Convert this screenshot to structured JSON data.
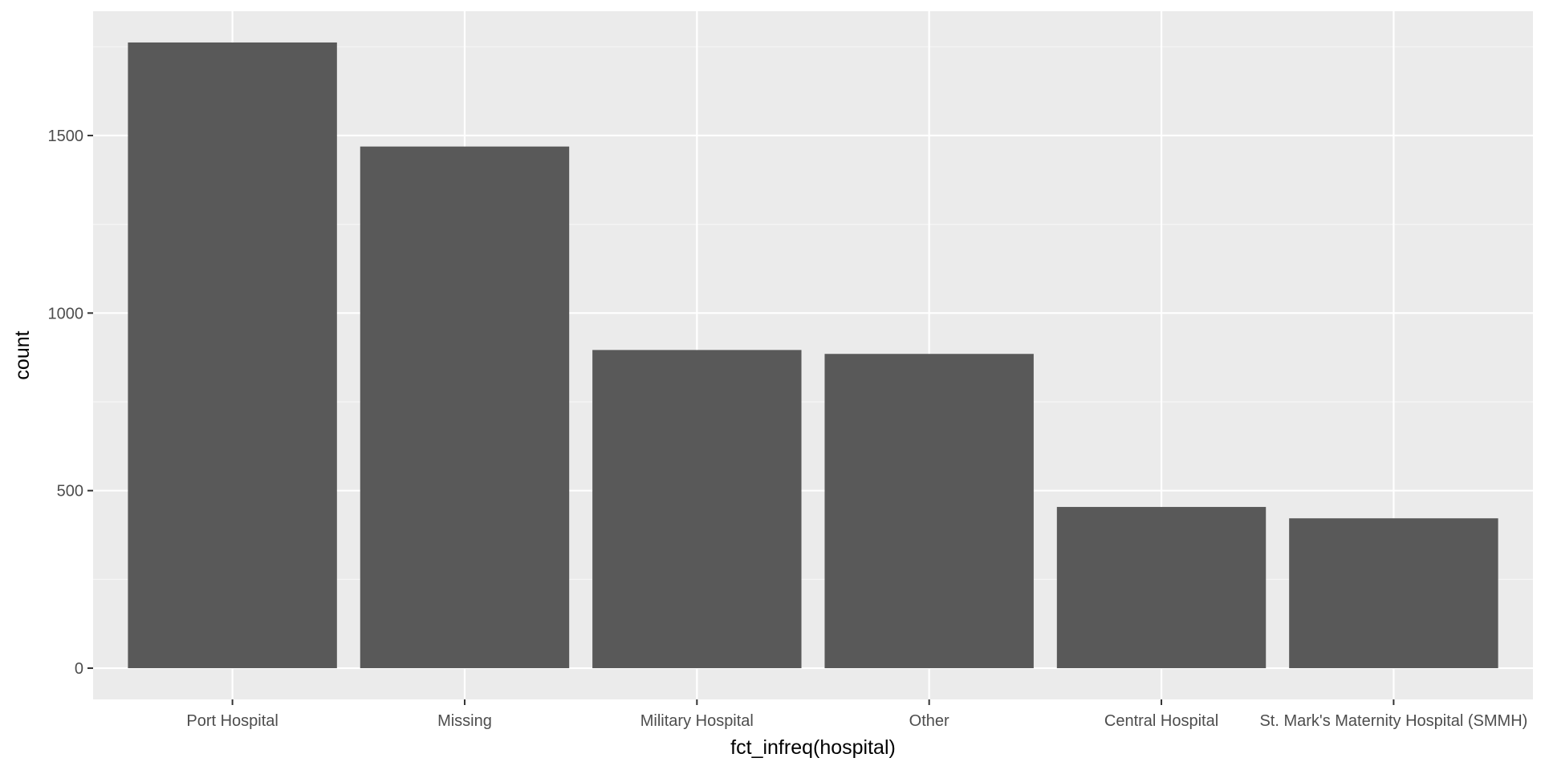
{
  "chart_data": {
    "type": "bar",
    "categories": [
      "Port Hospital",
      "Missing",
      "Military Hospital",
      "Other",
      "Central Hospital",
      "St. Mark's Maternity Hospital (SMMH)"
    ],
    "values": [
      1762,
      1469,
      896,
      885,
      454,
      422
    ],
    "xlabel": "fct_infreq(hospital)",
    "ylabel": "count",
    "ylim": [
      -88,
      1850
    ],
    "yticks": [
      0,
      500,
      1000,
      1500
    ],
    "ytick_labels": [
      "0",
      "500",
      "1000",
      "1500"
    ],
    "grid": true,
    "legend": "none",
    "colors": {
      "panel": "#EBEBEB",
      "grid_major": "#FFFFFF",
      "grid_minor": "#F5F5F5",
      "bar": "#595959",
      "tick_text": "#4D4D4D",
      "title_text": "#000000"
    }
  }
}
